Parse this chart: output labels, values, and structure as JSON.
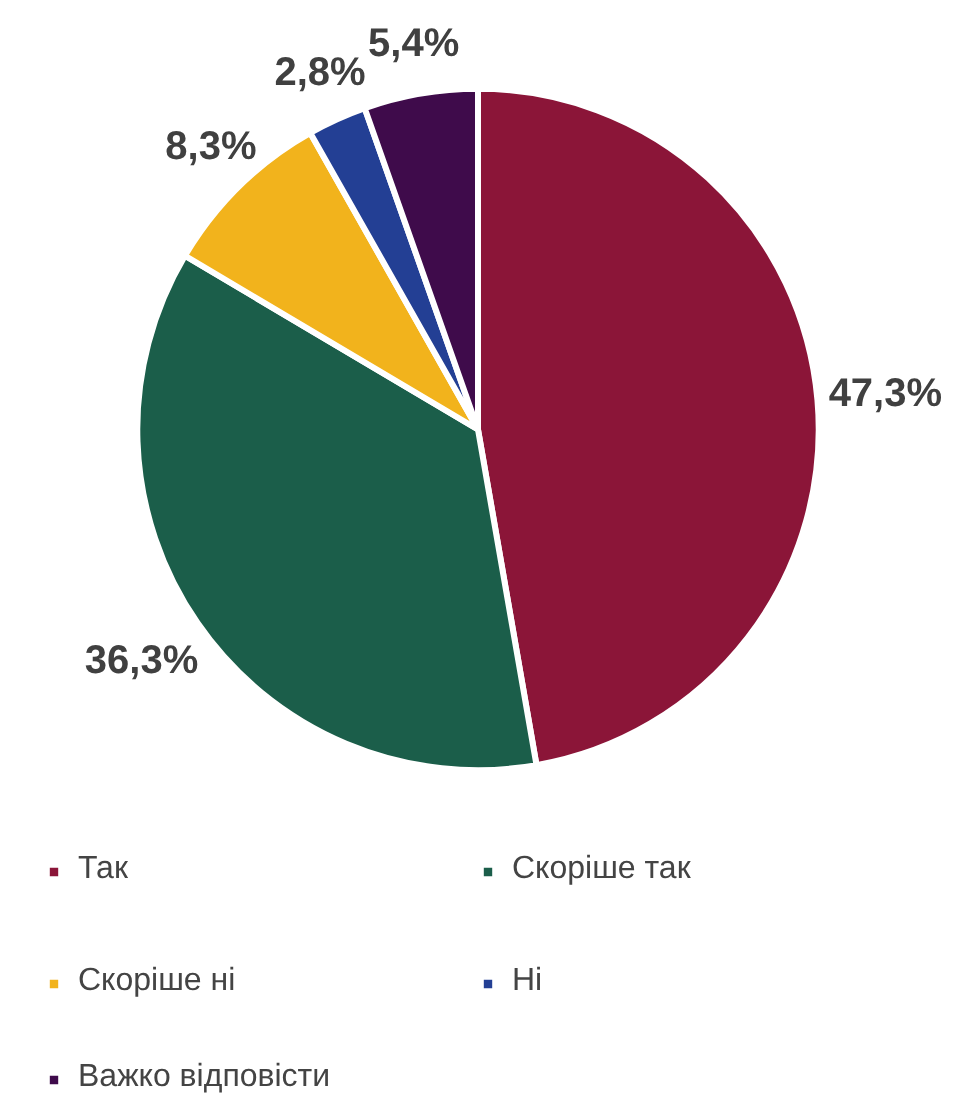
{
  "chart_data": {
    "type": "pie",
    "categories": [
      "Так",
      "Скоріше так",
      "Скоріше ні",
      "Ні",
      "Важко відповісти"
    ],
    "values": [
      47.3,
      36.3,
      8.3,
      2.8,
      5.4
    ],
    "colors": [
      "#8b1538",
      "#1b5e4a",
      "#f2b31c",
      "#233f94",
      "#3f0b4b"
    ],
    "value_labels": [
      "47,3%",
      "36,3%",
      "8,3%",
      "2,8%",
      "5,4%"
    ],
    "legend": "bottom"
  }
}
